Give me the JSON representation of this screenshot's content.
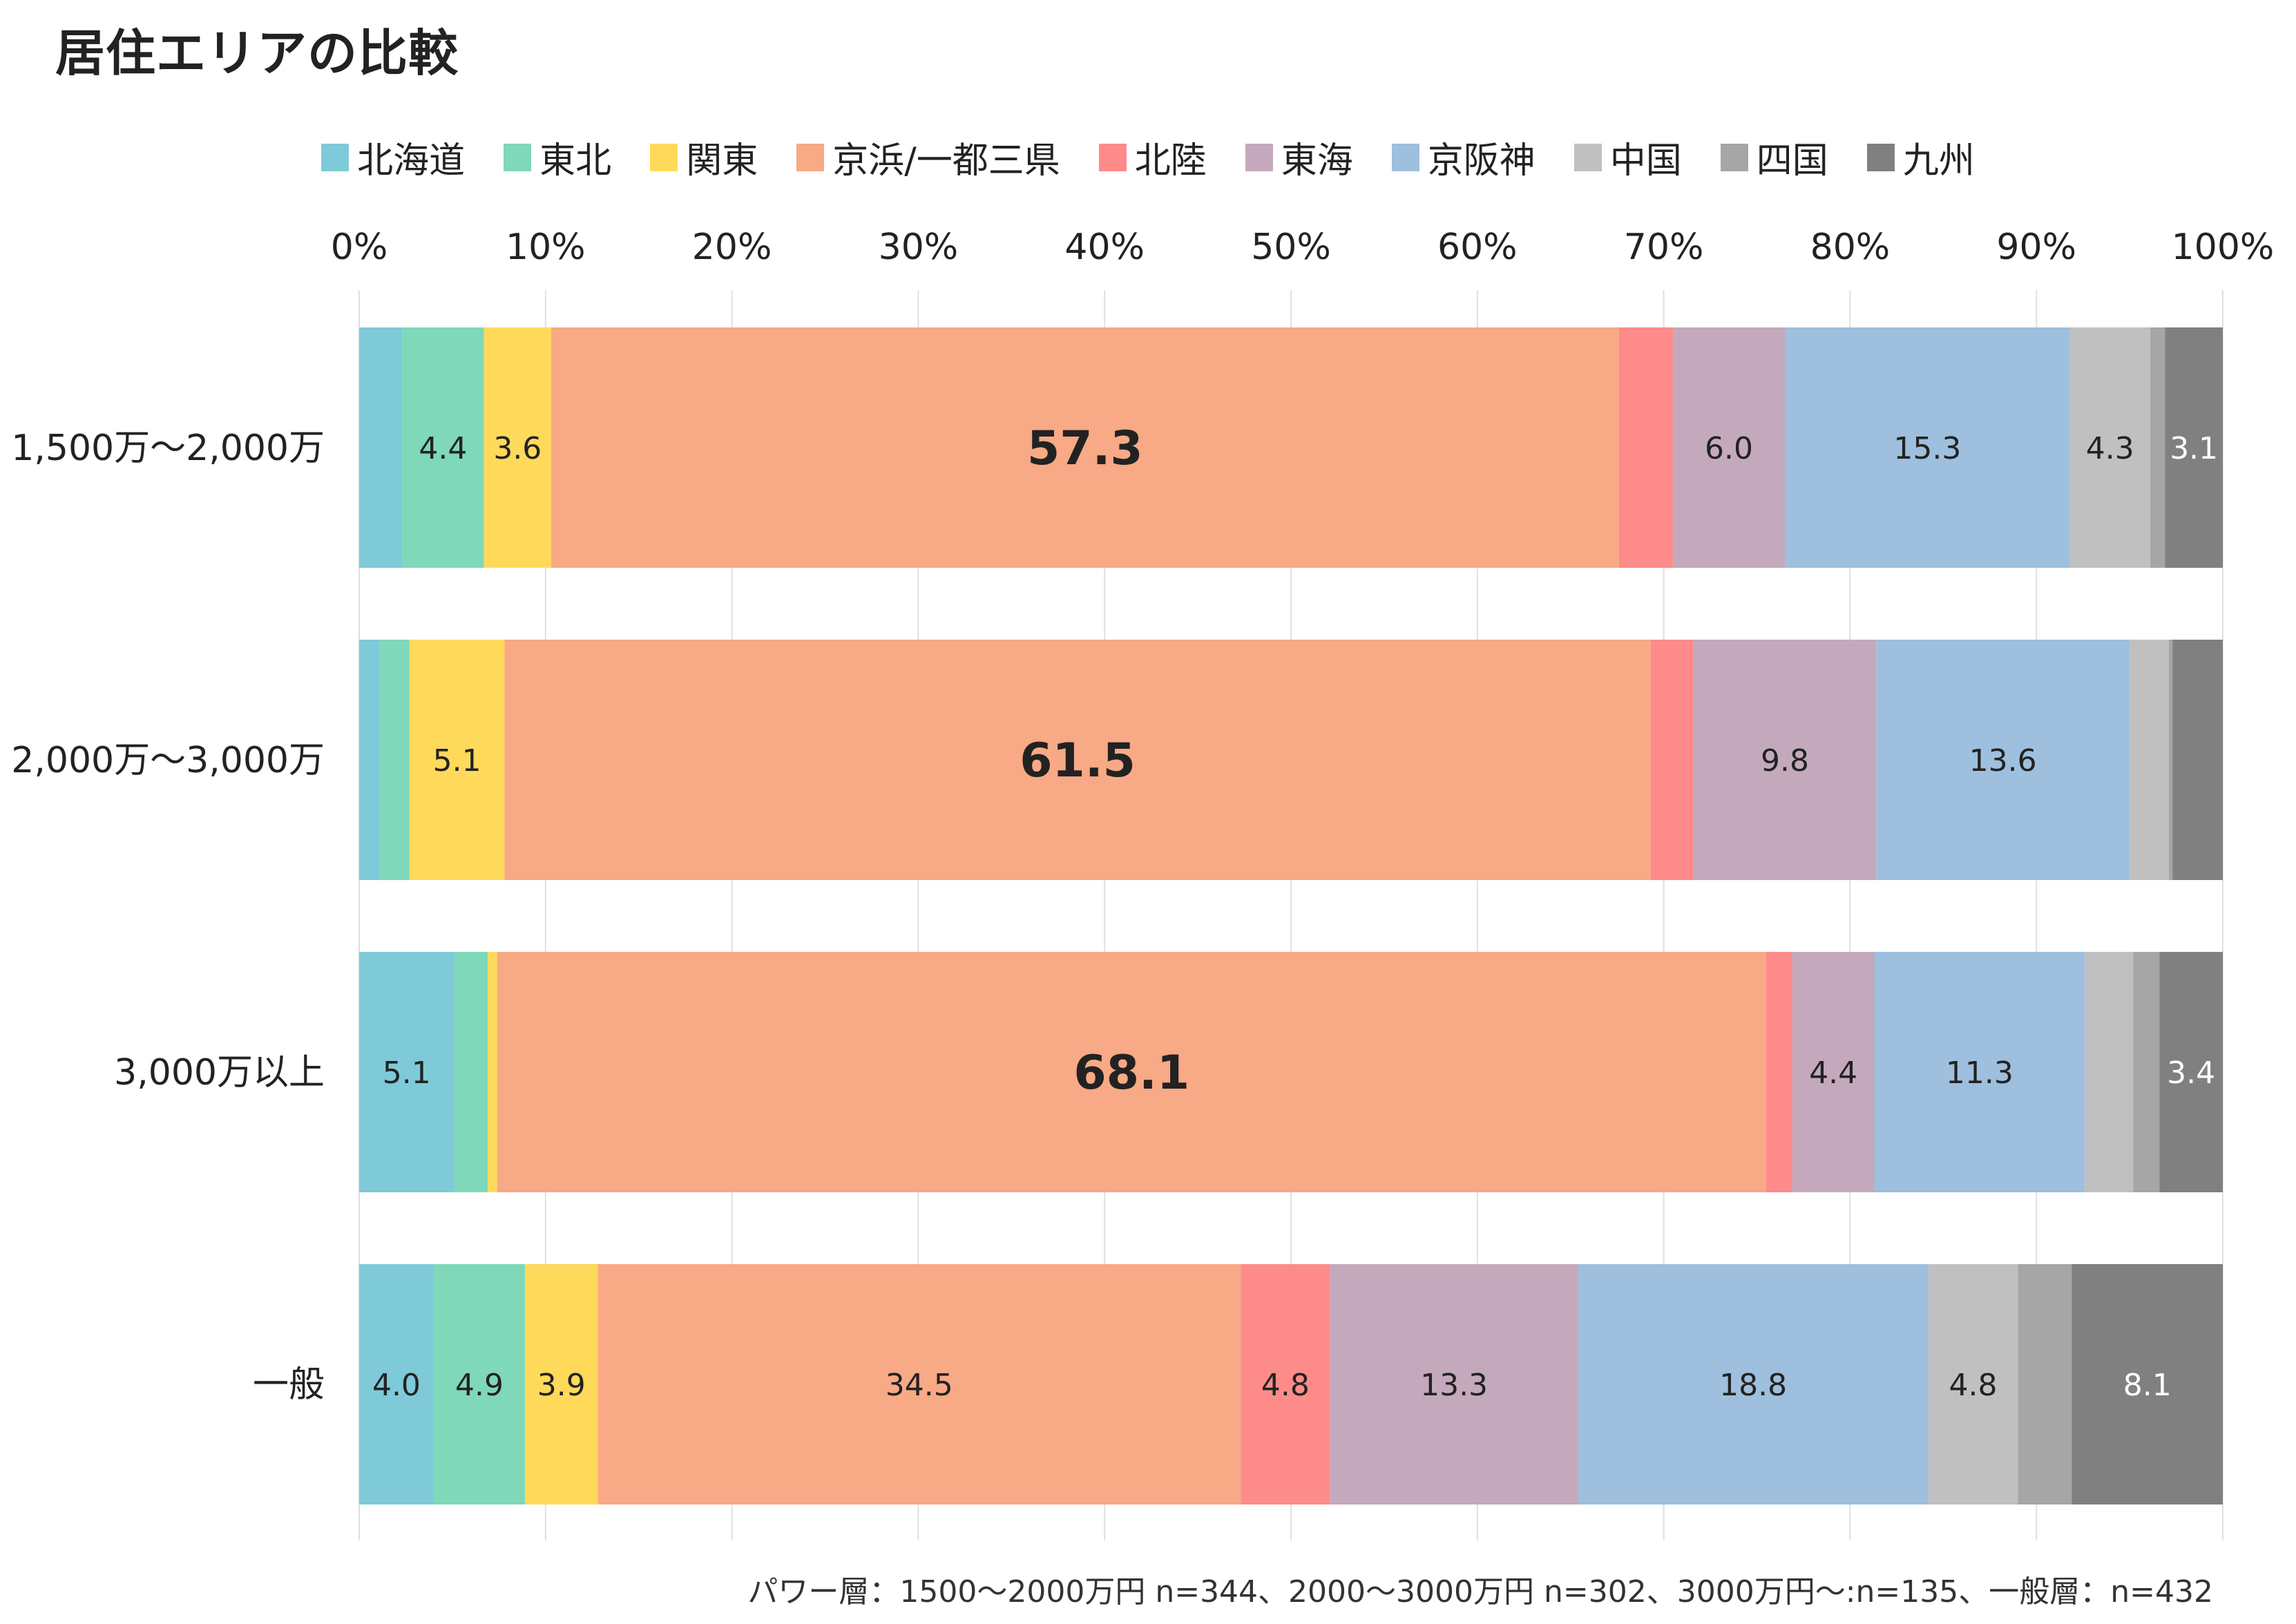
{
  "chart_data": {
    "type": "bar",
    "orientation": "horizontal",
    "stacked": true,
    "percent_stacked": true,
    "title": "居住エリアの比較",
    "xlim": [
      0,
      100
    ],
    "x_ticks": [
      "0%",
      "10%",
      "20%",
      "30%",
      "40%",
      "50%",
      "60%",
      "70%",
      "80%",
      "90%",
      "100%"
    ],
    "grid": "vertical",
    "legend_position": "top",
    "categories": [
      "1,500万～2,000万",
      "2,000万～3,000万",
      "3,000万以上",
      "一般"
    ],
    "series": [
      {
        "name": "北海道",
        "color": "#7ECAD8",
        "values": [
          2.3,
          1.1,
          5.1,
          4.0
        ],
        "labels": [
          "",
          "",
          "5.1",
          "4.0"
        ]
      },
      {
        "name": "東北",
        "color": "#7FD8B9",
        "values": [
          4.4,
          1.6,
          1.8,
          4.9
        ],
        "labels": [
          "4.4",
          "",
          "",
          "4.9"
        ]
      },
      {
        "name": "関東",
        "color": "#FFD95A",
        "values": [
          3.6,
          5.1,
          0.5,
          3.9
        ],
        "labels": [
          "3.6",
          "5.1",
          "",
          "3.9"
        ]
      },
      {
        "name": "京浜/一都三県",
        "color": "#F8A985",
        "values": [
          57.3,
          61.5,
          68.1,
          34.5
        ],
        "labels": [
          "57.3",
          "61.5",
          "68.1",
          "34.5"
        ],
        "emphasis": [
          true,
          true,
          true,
          false
        ]
      },
      {
        "name": "北陸",
        "color": "#FD8B8A",
        "values": [
          2.9,
          2.3,
          1.4,
          4.8
        ],
        "labels": [
          "",
          "",
          "",
          "4.8"
        ]
      },
      {
        "name": "東海",
        "color": "#C4A9BC",
        "values": [
          6.0,
          9.8,
          4.4,
          13.3
        ],
        "labels": [
          "6.0",
          "9.8",
          "4.4",
          "13.3"
        ]
      },
      {
        "name": "京阪神",
        "color": "#9EBFDD",
        "values": [
          15.3,
          13.6,
          11.3,
          18.8
        ],
        "labels": [
          "15.3",
          "13.6",
          "11.3",
          "18.8"
        ]
      },
      {
        "name": "中国",
        "color": "#C0C0C0",
        "values": [
          4.3,
          2.1,
          2.6,
          4.8
        ],
        "labels": [
          "4.3",
          "",
          "",
          "4.8"
        ]
      },
      {
        "name": "四国",
        "color": "#A6A6A6",
        "values": [
          0.8,
          0.2,
          1.4,
          2.9
        ],
        "labels": [
          "",
          "",
          "",
          ""
        ]
      },
      {
        "name": "九州",
        "color": "#808080",
        "values": [
          3.1,
          2.7,
          3.4,
          8.1
        ],
        "labels": [
          "3.1",
          "",
          "3.4",
          "8.1"
        ],
        "label_color": "#ffffff"
      }
    ]
  },
  "footnote": "パワー層：1500～2000万円 n=344、2000～3000万円 n=302、3000万円～:n=135、一般層：n=432"
}
